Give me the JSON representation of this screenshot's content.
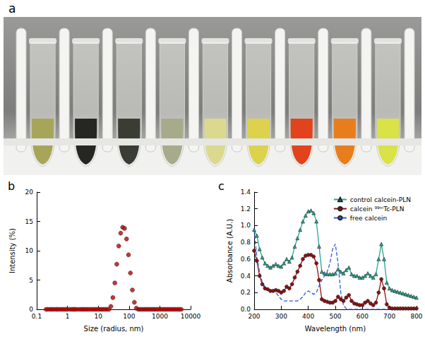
{
  "photo": {
    "label": "a",
    "tube_colors": [
      "#a7a55a",
      "#262622",
      "#3a3d33",
      "#a8aa8c",
      "#dad98e",
      "#dcd24c",
      "#e2421c",
      "#e87d1e",
      "#d9e246"
    ]
  },
  "chart_data": [
    {
      "type": "scatter",
      "title": "b",
      "x_label": "Size (radius, nm)",
      "y_label": "Intensity (%)",
      "log": "x",
      "grid": false,
      "color": "#c00000",
      "marker": "circle",
      "x": [
        0.2,
        0.23,
        0.27,
        0.31,
        0.36,
        0.42,
        0.48,
        0.56,
        0.65,
        0.75,
        0.87,
        1.0,
        1.2,
        1.4,
        1.6,
        1.8,
        2.1,
        2.5,
        2.9,
        3.3,
        3.8,
        4.4,
        5.1,
        6.0,
        6.9,
        8.0,
        9.2,
        10.7,
        12.4,
        14.3,
        16.6,
        19.2,
        22.2,
        25.7,
        29.8,
        34.5,
        39.9,
        46.2,
        53.5,
        61.9,
        71.6,
        82.9,
        95.9,
        111,
        128,
        149,
        172,
        199,
        230,
        267,
        309,
        357,
        413,
        478,
        554,
        641,
        742,
        858,
        993,
        1150,
        1330,
        1540,
        1780,
        2060,
        2390,
        2760,
        3200,
        3700,
        4280,
        4960
      ],
      "values": [
        0,
        0,
        0,
        0,
        0,
        0,
        0,
        0,
        0,
        0,
        0,
        0,
        0,
        0,
        0,
        0,
        0,
        0,
        0,
        0,
        0,
        0,
        0,
        0,
        0,
        0,
        0,
        0,
        0,
        0,
        0,
        0,
        0,
        0.5,
        2,
        4.5,
        7.7,
        10.8,
        13,
        14,
        13.8,
        12,
        9.3,
        6.2,
        3.3,
        1.2,
        0.2,
        0,
        0,
        0,
        0,
        0,
        0,
        0,
        0,
        0,
        0,
        0,
        0,
        0,
        0,
        0,
        0,
        0,
        0,
        0,
        0,
        0,
        0,
        0
      ],
      "xlim": [
        0.1,
        10000
      ],
      "xticks": [
        0.1,
        1,
        10,
        100,
        1000,
        10000
      ],
      "ylim": [
        0,
        20
      ],
      "yticks": [
        0,
        5,
        10,
        15,
        20
      ]
    },
    {
      "type": "line",
      "title": "c",
      "x_label": "Wavelength (nm)",
      "y_label": "Absorbance (A.U.)",
      "grid": false,
      "legend": "upper right",
      "x": [
        200,
        210,
        220,
        230,
        240,
        250,
        260,
        270,
        280,
        290,
        300,
        310,
        320,
        330,
        340,
        350,
        360,
        370,
        380,
        390,
        400,
        410,
        420,
        430,
        440,
        450,
        460,
        470,
        480,
        490,
        500,
        510,
        520,
        530,
        540,
        550,
        560,
        570,
        580,
        590,
        600,
        610,
        620,
        630,
        640,
        650,
        660,
        670,
        680,
        690,
        700,
        710,
        720,
        730,
        740,
        750,
        760,
        770,
        780,
        790,
        800
      ],
      "series": [
        {
          "name": "control calcein-PLN",
          "color": "#2aa58f",
          "marker": "triangle",
          "line_style": "solid",
          "values": [
            0.95,
            0.88,
            0.72,
            0.62,
            0.55,
            0.52,
            0.5,
            0.52,
            0.54,
            0.52,
            0.51,
            0.55,
            0.6,
            0.57,
            0.62,
            0.75,
            0.85,
            0.95,
            1.05,
            1.12,
            1.17,
            1.18,
            1.15,
            1.05,
            0.75,
            0.45,
            0.43,
            0.42,
            0.42,
            0.42,
            0.43,
            0.48,
            0.45,
            0.43,
            0.47,
            0.5,
            0.42,
            0.4,
            0.4,
            0.38,
            0.38,
            0.4,
            0.43,
            0.4,
            0.38,
            0.42,
            0.6,
            0.78,
            0.6,
            0.32,
            0.25,
            0.23,
            0.22,
            0.21,
            0.2,
            0.19,
            0.18,
            0.17,
            0.16,
            0.15,
            0.14
          ]
        },
        {
          "name": "calcein ⁹⁹ᵐTc-PLN",
          "color": "#8b1010",
          "marker": "circle",
          "line_style": "solid",
          "values": [
            0.7,
            0.58,
            0.4,
            0.3,
            0.25,
            0.24,
            0.22,
            0.22,
            0.23,
            0.22,
            0.2,
            0.22,
            0.27,
            0.25,
            0.3,
            0.38,
            0.45,
            0.52,
            0.6,
            0.64,
            0.65,
            0.65,
            0.63,
            0.55,
            0.35,
            0.12,
            0.1,
            0.09,
            0.08,
            0.08,
            0.1,
            0.15,
            0.12,
            0.1,
            0.14,
            0.17,
            0.1,
            0.07,
            0.06,
            0.05,
            0.05,
            0.08,
            0.1,
            0.07,
            0.05,
            0.08,
            0.2,
            0.36,
            0.25,
            0.06,
            0.02,
            0.01,
            0.01,
            0.01,
            0.01,
            0.01,
            0.01,
            0.01,
            0.01,
            0.01,
            0.01
          ]
        },
        {
          "name": "free calcein",
          "color": "#3355dd",
          "marker": "none",
          "line_style": "dashed",
          "values": [
            0.95,
            0.62,
            0.45,
            0.32,
            0.27,
            0.24,
            0.23,
            0.22,
            0.2,
            0.16,
            0.12,
            0.1,
            0.1,
            0.1,
            0.1,
            0.1,
            0.1,
            0.12,
            0.15,
            0.2,
            0.22,
            0.2,
            0.18,
            0.2,
            0.28,
            0.35,
            0.4,
            0.45,
            0.55,
            0.72,
            0.78,
            0.55,
            0.2,
            0.05,
            0.01,
            0,
            0,
            0,
            0,
            0,
            0,
            0,
            0,
            0,
            0,
            0,
            0,
            0,
            0,
            0,
            0,
            0,
            0,
            0,
            0,
            0,
            0,
            0,
            0,
            0,
            0
          ]
        }
      ],
      "xlim": [
        200,
        800
      ],
      "xticks": [
        200,
        300,
        400,
        500,
        600,
        700,
        800
      ],
      "ylim": [
        0,
        1.4
      ],
      "yticks": [
        {
          "value": 0,
          "label": "0.0"
        },
        0.2,
        0.4,
        0.6,
        0.8,
        {
          "value": 1,
          "label": "1.0"
        },
        1.2,
        1.4
      ]
    }
  ]
}
